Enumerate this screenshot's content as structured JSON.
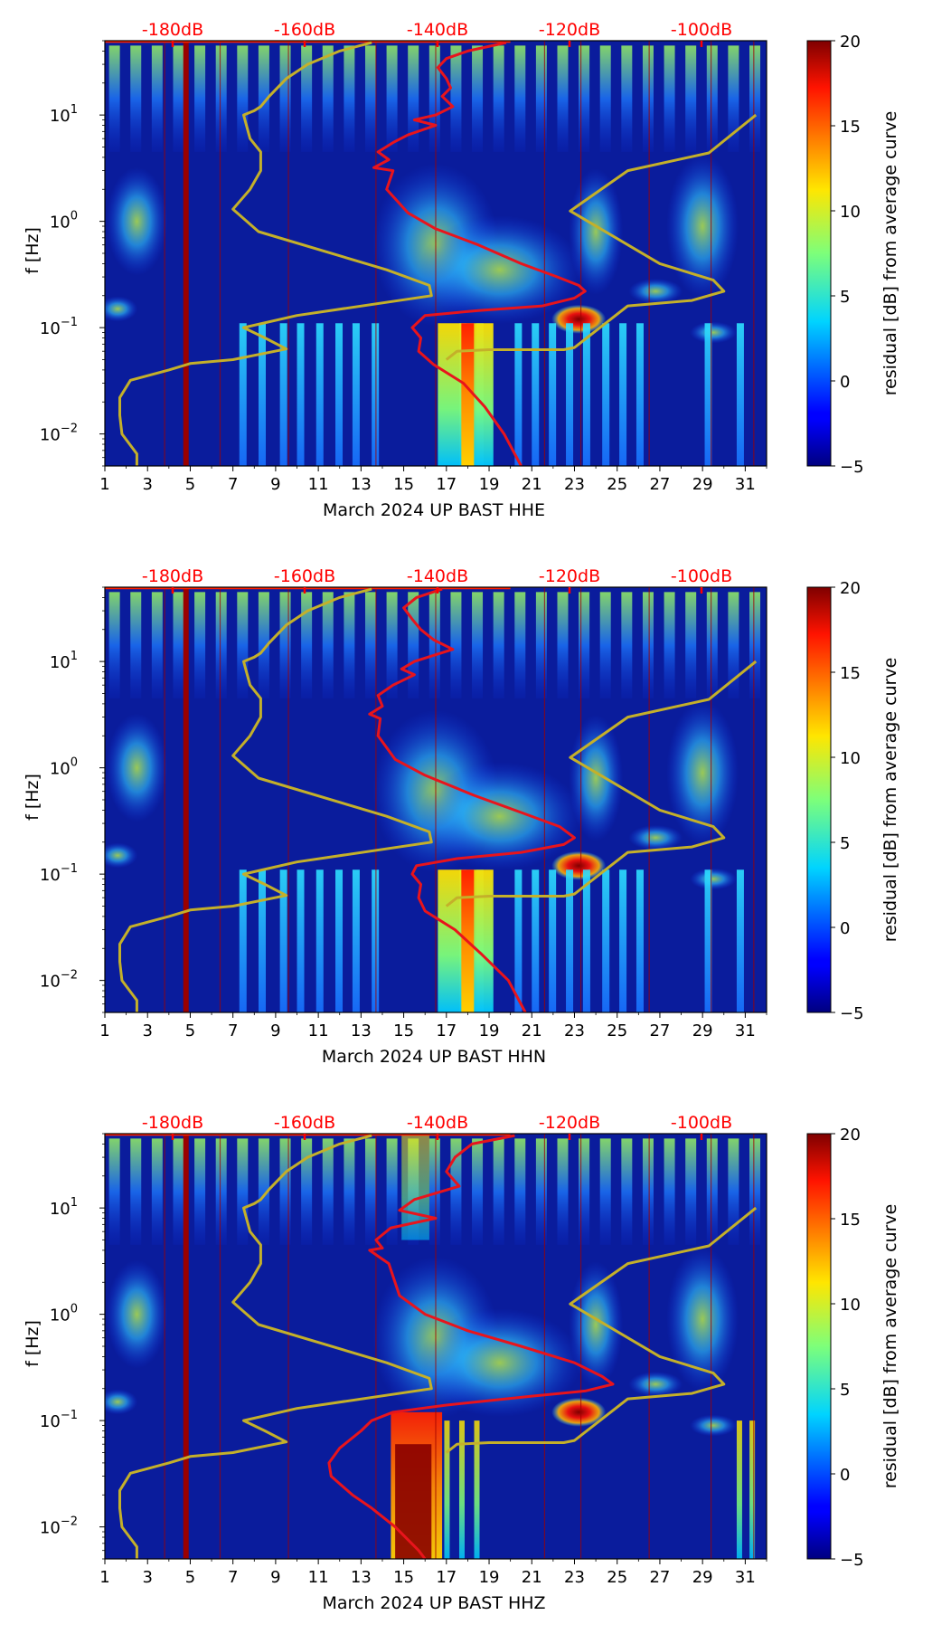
{
  "chart_data": [
    {
      "type": "heatmap",
      "component": "HHE",
      "xlabel": "March 2024 UP BAST  HHE",
      "ylabel": "f [Hz]",
      "colorbar_label": "residual [dB] from average curve",
      "colorbar_range": [
        -5,
        20
      ],
      "colorbar_ticks": [
        "20",
        "15",
        "10",
        "5",
        "0",
        "−5"
      ],
      "x_ticks": [
        "1",
        "3",
        "5",
        "7",
        "9",
        "11",
        "13",
        "15",
        "17",
        "19",
        "21",
        "23",
        "25",
        "27",
        "29",
        "31"
      ],
      "y_ticks": [
        {
          "base": "10",
          "exp": "1"
        },
        {
          "base": "10",
          "exp": "0"
        },
        {
          "base": "10",
          "exp": "−1"
        },
        {
          "base": "10",
          "exp": "−2"
        }
      ],
      "top_db_labels": [
        "-180dB",
        "-160dB",
        "-140dB",
        "-120dB",
        "-100dB"
      ],
      "xlim": [
        1,
        32
      ],
      "ylim_hz": [
        0.005,
        50
      ],
      "red_curve": [
        [
          19.8,
          48
        ],
        [
          18.0,
          40
        ],
        [
          17.0,
          34
        ],
        [
          16.6,
          28
        ],
        [
          17.0,
          22
        ],
        [
          17.2,
          18
        ],
        [
          16.8,
          15
        ],
        [
          17.3,
          12
        ],
        [
          16.5,
          10
        ],
        [
          15.5,
          9
        ],
        [
          16.5,
          8
        ],
        [
          15.2,
          6.5
        ],
        [
          14.5,
          5.5
        ],
        [
          13.8,
          4.5
        ],
        [
          14.3,
          3.8
        ],
        [
          13.6,
          3.2
        ],
        [
          14.5,
          3.0
        ],
        [
          14.2,
          2.0
        ],
        [
          15.2,
          1.2
        ],
        [
          16.5,
          0.85
        ],
        [
          18.5,
          0.6
        ],
        [
          20.5,
          0.4
        ],
        [
          22.2,
          0.3
        ],
        [
          23.2,
          0.25
        ],
        [
          23.5,
          0.22
        ],
        [
          23.0,
          0.19
        ],
        [
          21.5,
          0.16
        ],
        [
          18.5,
          0.145
        ],
        [
          16.0,
          0.13
        ],
        [
          15.4,
          0.1
        ],
        [
          15.8,
          0.08
        ],
        [
          15.7,
          0.06
        ],
        [
          16.4,
          0.045
        ],
        [
          17.8,
          0.03
        ],
        [
          18.8,
          0.018
        ],
        [
          19.7,
          0.01
        ],
        [
          20.5,
          0.005
        ]
      ],
      "yellow_curve": [
        [
          2.5,
          0.005
        ],
        [
          2.5,
          0.0065
        ],
        [
          1.8,
          0.01
        ],
        [
          1.7,
          0.015
        ],
        [
          1.7,
          0.022
        ],
        [
          2.2,
          0.032
        ],
        [
          4.0,
          0.04
        ],
        [
          5.0,
          0.046
        ],
        [
          7.0,
          0.05
        ],
        [
          9.5,
          0.063
        ],
        [
          8.5,
          0.08
        ],
        [
          7.5,
          0.1
        ],
        [
          10.0,
          0.13
        ],
        [
          16.3,
          0.2
        ],
        [
          16.2,
          0.25
        ],
        [
          14.2,
          0.35
        ],
        [
          8.2,
          0.8
        ],
        [
          7.0,
          1.3
        ],
        [
          7.8,
          2.0
        ],
        [
          8.3,
          3.0
        ],
        [
          8.3,
          4.5
        ],
        [
          7.8,
          6.0
        ],
        [
          7.5,
          10.0
        ],
        [
          8.0,
          11.0
        ],
        [
          8.3,
          12.0
        ],
        [
          8.7,
          15.0
        ],
        [
          9.5,
          22.0
        ],
        [
          10.5,
          30.0
        ],
        [
          12.0,
          40.0
        ],
        [
          13.5,
          48.0
        ]
      ],
      "yellow_curve_right": [
        [
          17.0,
          0.05
        ],
        [
          17.5,
          0.06
        ],
        [
          19.0,
          0.062
        ],
        [
          22.5,
          0.062
        ],
        [
          23.0,
          0.065
        ],
        [
          25.5,
          0.16
        ],
        [
          28.5,
          0.18
        ],
        [
          30.0,
          0.22
        ],
        [
          29.5,
          0.28
        ],
        [
          27.0,
          0.4
        ],
        [
          22.8,
          1.25
        ],
        [
          25.5,
          3.0
        ],
        [
          29.3,
          4.4
        ],
        [
          31.5,
          10.0
        ]
      ]
    },
    {
      "type": "heatmap",
      "component": "HHN",
      "xlabel": "March 2024 UP BAST  HHN",
      "ylabel": "f [Hz]",
      "colorbar_label": "residual [dB] from average curve",
      "colorbar_range": [
        -5,
        20
      ],
      "colorbar_ticks": [
        "20",
        "15",
        "10",
        "5",
        "0",
        "−5"
      ],
      "x_ticks": [
        "1",
        "3",
        "5",
        "7",
        "9",
        "11",
        "13",
        "15",
        "17",
        "19",
        "21",
        "23",
        "25",
        "27",
        "29",
        "31"
      ],
      "y_ticks": [
        {
          "base": "10",
          "exp": "1"
        },
        {
          "base": "10",
          "exp": "0"
        },
        {
          "base": "10",
          "exp": "−1"
        },
        {
          "base": "10",
          "exp": "−2"
        }
      ],
      "top_db_labels": [
        "-180dB",
        "-160dB",
        "-140dB",
        "-120dB",
        "-100dB"
      ],
      "xlim": [
        1,
        32
      ],
      "ylim_hz": [
        0.005,
        50
      ],
      "red_curve": [
        [
          16.8,
          48
        ],
        [
          15.6,
          40
        ],
        [
          15.0,
          32
        ],
        [
          15.4,
          25
        ],
        [
          15.8,
          20
        ],
        [
          16.4,
          16
        ],
        [
          17.3,
          13
        ],
        [
          15.5,
          10
        ],
        [
          14.9,
          8.5
        ],
        [
          15.5,
          7.5
        ],
        [
          14.5,
          6.0
        ],
        [
          13.8,
          4.8
        ],
        [
          14.0,
          3.8
        ],
        [
          13.4,
          3.2
        ],
        [
          13.9,
          2.9
        ],
        [
          13.8,
          2.0
        ],
        [
          14.6,
          1.2
        ],
        [
          16.0,
          0.85
        ],
        [
          18.3,
          0.55
        ],
        [
          20.5,
          0.38
        ],
        [
          22.3,
          0.28
        ],
        [
          23.0,
          0.22
        ],
        [
          22.5,
          0.19
        ],
        [
          20.5,
          0.16
        ],
        [
          17.5,
          0.14
        ],
        [
          15.6,
          0.12
        ],
        [
          15.4,
          0.1
        ],
        [
          15.8,
          0.08
        ],
        [
          15.7,
          0.06
        ],
        [
          16.0,
          0.045
        ],
        [
          17.4,
          0.03
        ],
        [
          18.6,
          0.018
        ],
        [
          19.9,
          0.01
        ],
        [
          20.7,
          0.005
        ]
      ],
      "yellow_curve": [
        [
          2.5,
          0.005
        ],
        [
          2.5,
          0.0065
        ],
        [
          1.8,
          0.01
        ],
        [
          1.7,
          0.015
        ],
        [
          1.7,
          0.022
        ],
        [
          2.2,
          0.032
        ],
        [
          4.0,
          0.04
        ],
        [
          5.0,
          0.046
        ],
        [
          7.0,
          0.05
        ],
        [
          9.5,
          0.063
        ],
        [
          8.5,
          0.08
        ],
        [
          7.5,
          0.1
        ],
        [
          10.0,
          0.13
        ],
        [
          16.3,
          0.2
        ],
        [
          16.2,
          0.25
        ],
        [
          14.2,
          0.35
        ],
        [
          8.2,
          0.8
        ],
        [
          7.0,
          1.3
        ],
        [
          7.8,
          2.0
        ],
        [
          8.3,
          3.0
        ],
        [
          8.3,
          4.5
        ],
        [
          7.8,
          6.0
        ],
        [
          7.5,
          10.0
        ],
        [
          8.0,
          11.0
        ],
        [
          8.3,
          12.0
        ],
        [
          8.7,
          15.0
        ],
        [
          9.5,
          22.0
        ],
        [
          10.5,
          30.0
        ],
        [
          12.0,
          40.0
        ],
        [
          13.5,
          48.0
        ]
      ],
      "yellow_curve_right": [
        [
          17.0,
          0.05
        ],
        [
          17.5,
          0.06
        ],
        [
          19.0,
          0.062
        ],
        [
          22.5,
          0.062
        ],
        [
          23.0,
          0.065
        ],
        [
          25.5,
          0.16
        ],
        [
          28.5,
          0.18
        ],
        [
          30.0,
          0.22
        ],
        [
          29.5,
          0.28
        ],
        [
          27.0,
          0.4
        ],
        [
          22.8,
          1.25
        ],
        [
          25.5,
          3.0
        ],
        [
          29.3,
          4.4
        ],
        [
          31.5,
          10.0
        ]
      ]
    },
    {
      "type": "heatmap",
      "component": "HHZ",
      "xlabel": "March 2024 UP BAST  HHZ",
      "ylabel": "f [Hz]",
      "colorbar_label": "residual [dB] from average curve",
      "colorbar_range": [
        -5,
        20
      ],
      "colorbar_ticks": [
        "20",
        "15",
        "10",
        "5",
        "0",
        "−5"
      ],
      "x_ticks": [
        "1",
        "3",
        "5",
        "7",
        "9",
        "11",
        "13",
        "15",
        "17",
        "19",
        "21",
        "23",
        "25",
        "27",
        "29",
        "31"
      ],
      "y_ticks": [
        {
          "base": "10",
          "exp": "1"
        },
        {
          "base": "10",
          "exp": "0"
        },
        {
          "base": "10",
          "exp": "−1"
        },
        {
          "base": "10",
          "exp": "−2"
        }
      ],
      "top_db_labels": [
        "-180dB",
        "-160dB",
        "-140dB",
        "-120dB",
        "-100dB"
      ],
      "xlim": [
        1,
        32
      ],
      "ylim_hz": [
        0.005,
        50
      ],
      "red_curve": [
        [
          20.2,
          48
        ],
        [
          18.2,
          40
        ],
        [
          17.4,
          30
        ],
        [
          17.0,
          22
        ],
        [
          17.6,
          16
        ],
        [
          15.5,
          12
        ],
        [
          14.8,
          9.5
        ],
        [
          16.5,
          8
        ],
        [
          14.4,
          6.5
        ],
        [
          13.7,
          5.0
        ],
        [
          14.0,
          4.2
        ],
        [
          13.4,
          4.0
        ],
        [
          14.3,
          3.0
        ],
        [
          14.8,
          1.5
        ],
        [
          16.0,
          1.0
        ],
        [
          18.0,
          0.7
        ],
        [
          20.5,
          0.5
        ],
        [
          23.0,
          0.35
        ],
        [
          24.3,
          0.26
        ],
        [
          24.8,
          0.22
        ],
        [
          23.5,
          0.19
        ],
        [
          21.0,
          0.17
        ],
        [
          17.0,
          0.14
        ],
        [
          14.5,
          0.12
        ],
        [
          13.5,
          0.1
        ],
        [
          13.0,
          0.08
        ],
        [
          12.0,
          0.055
        ],
        [
          11.5,
          0.04
        ],
        [
          11.6,
          0.03
        ],
        [
          12.6,
          0.02
        ],
        [
          13.5,
          0.015
        ],
        [
          14.6,
          0.01
        ],
        [
          15.7,
          0.006
        ],
        [
          16.0,
          0.005
        ]
      ],
      "yellow_curve": [
        [
          2.5,
          0.005
        ],
        [
          2.5,
          0.0065
        ],
        [
          1.8,
          0.01
        ],
        [
          1.7,
          0.015
        ],
        [
          1.7,
          0.022
        ],
        [
          2.2,
          0.032
        ],
        [
          4.0,
          0.04
        ],
        [
          5.0,
          0.046
        ],
        [
          7.0,
          0.05
        ],
        [
          9.5,
          0.063
        ],
        [
          8.5,
          0.08
        ],
        [
          7.5,
          0.1
        ],
        [
          10.0,
          0.13
        ],
        [
          16.3,
          0.2
        ],
        [
          16.2,
          0.25
        ],
        [
          14.2,
          0.35
        ],
        [
          8.2,
          0.8
        ],
        [
          7.0,
          1.3
        ],
        [
          7.8,
          2.0
        ],
        [
          8.3,
          3.0
        ],
        [
          8.3,
          4.5
        ],
        [
          7.8,
          6.0
        ],
        [
          7.5,
          10.0
        ],
        [
          8.0,
          11.0
        ],
        [
          8.3,
          12.0
        ],
        [
          8.7,
          15.0
        ],
        [
          9.5,
          22.0
        ],
        [
          10.5,
          30.0
        ],
        [
          12.0,
          40.0
        ],
        [
          13.5,
          48.0
        ]
      ],
      "yellow_curve_right": [
        [
          17.0,
          0.05
        ],
        [
          17.5,
          0.06
        ],
        [
          19.0,
          0.062
        ],
        [
          22.5,
          0.062
        ],
        [
          23.0,
          0.065
        ],
        [
          25.5,
          0.16
        ],
        [
          28.5,
          0.18
        ],
        [
          30.0,
          0.22
        ],
        [
          29.5,
          0.28
        ],
        [
          27.0,
          0.4
        ],
        [
          22.8,
          1.25
        ],
        [
          25.5,
          3.0
        ],
        [
          29.3,
          4.4
        ],
        [
          31.5,
          10.0
        ]
      ]
    }
  ],
  "colors": {
    "red_curve": "#e8141c",
    "yellow_curve": "#c4b02a",
    "db_label": "#ff0000",
    "background_field": "#0a1c9c"
  }
}
